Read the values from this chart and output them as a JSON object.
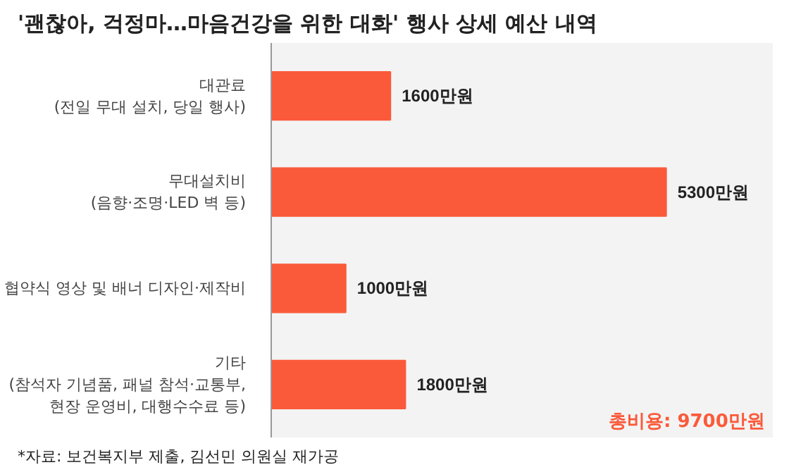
{
  "chart_data": {
    "type": "bar",
    "orientation": "horizontal",
    "title": "'괜찮아, 걱정마…마음건강을 위한 대화' 행사 상세 예산 내역",
    "categories": [
      "대관료\n(전일 무대 설치, 당일 행사)",
      "무대설치비\n(음향·조명·LED 벽 등)",
      "협약식 영상 및 배너 디자인·제작비",
      "기타\n(참석자 기념품, 패널 참석·교통부,\n현장 운영비, 대행수수료 등)"
    ],
    "values": [
      1600,
      5300,
      1000,
      1800
    ],
    "value_labels": [
      "1600만원",
      "5300만원",
      "1000만원",
      "1800만원"
    ],
    "color": "#fb5a3a",
    "annotations": [
      "총비용: 9700만원",
      "*자료: 보건복지부 제출, 김선민 의원실 재가공"
    ],
    "grid": false
  }
}
